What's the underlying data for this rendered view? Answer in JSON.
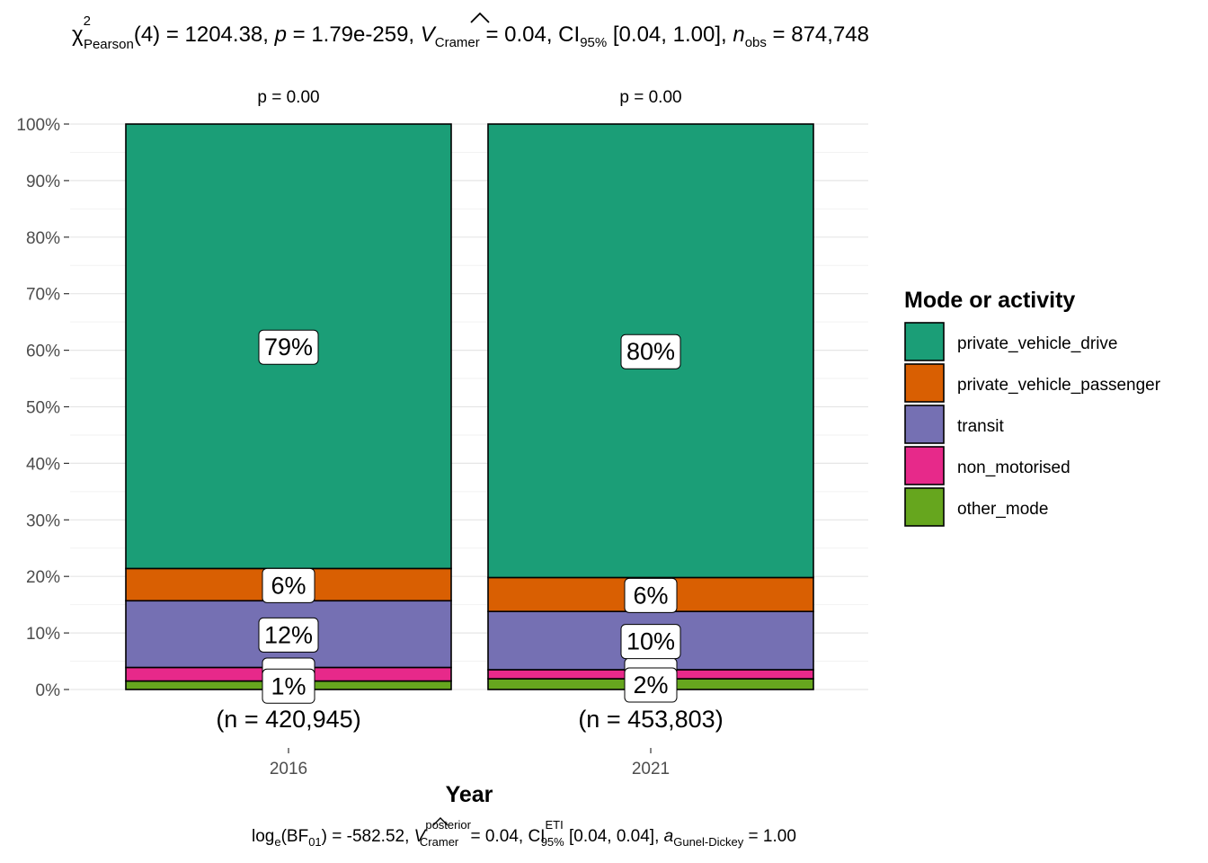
{
  "header": {
    "chi": "χ",
    "chi_sup": "2",
    "chi_sub": "Pearson",
    "df_val": "(4) = 1204.38, ",
    "p_sym": "p",
    "p_val": " = 1.79e-259, ",
    "v_sym": "V",
    "v_sub": "Cramer",
    "v_val": " = 0.04, CI",
    "ci_sub": "95%",
    "ci_val": " [0.04, 1.00], ",
    "n_sym": "n",
    "n_sub": "obs",
    "n_val": " = 874,748"
  },
  "footer": {
    "log": "log",
    "log_sub": "e",
    "bf_open": "(BF",
    "bf_sub": "01",
    "bf_val": ") = -582.52, ",
    "v_sym": "V",
    "v_sup": "posterior",
    "v_sub": "Cramer",
    "v_val": " = 0.04, CI",
    "ci_sup": "ETI",
    "ci_sub": "95%",
    "ci_val": " [0.04, 0.04], ",
    "a_sym": "a",
    "a_sub": "Gunel-Dickey",
    "a_val": " = 1.00"
  },
  "chart_data": {
    "type": "bar",
    "stacked": true,
    "percent": true,
    "title": "",
    "xlabel": "Year",
    "ylabel": "",
    "ylim": [
      0,
      100
    ],
    "y_ticks": [
      "0%",
      "10%",
      "20%",
      "30%",
      "40%",
      "50%",
      "60%",
      "70%",
      "80%",
      "90%",
      "100%"
    ],
    "categories": [
      "2016",
      "2021"
    ],
    "bar_pvalues": [
      "p = 0.00",
      "p = 0.00"
    ],
    "counts": [
      "(n = 420,945)",
      "(n = 453,803)"
    ],
    "legend_title": "Mode or activity",
    "legend_position": "right",
    "series": [
      {
        "name": "private_vehicle_drive",
        "color": "#1B9E77",
        "values": [
          78.6,
          80.2
        ],
        "labels": [
          "79%",
          "80%"
        ]
      },
      {
        "name": "private_vehicle_passenger",
        "color": "#D95F02",
        "values": [
          5.7,
          6.0
        ],
        "labels": [
          "6%",
          "6%"
        ]
      },
      {
        "name": "transit",
        "color": "#7570B3",
        "values": [
          11.8,
          10.3
        ],
        "labels": [
          "12%",
          "10%"
        ]
      },
      {
        "name": "non_motorised",
        "color": "#E7298A",
        "values": [
          2.4,
          1.6
        ],
        "labels": [
          "",
          ""
        ]
      },
      {
        "name": "other_mode",
        "color": "#66A61E",
        "values": [
          1.5,
          1.9
        ],
        "labels": [
          "1%",
          "2%"
        ]
      }
    ]
  }
}
